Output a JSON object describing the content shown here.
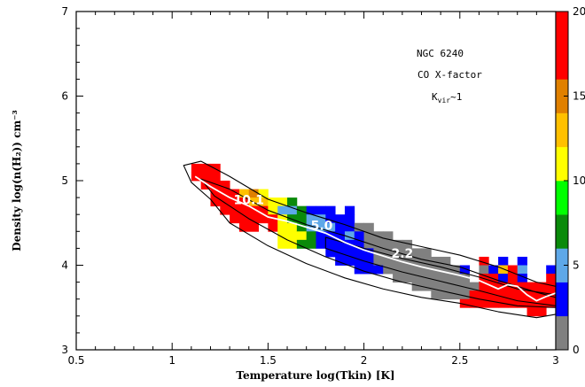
{
  "chart_data": {
    "type": "heatmap",
    "title": "",
    "xlabel": "Temperature log(Tkin) [K]",
    "ylabel": "Density log(n(H₂)) cm⁻³",
    "xlim": [
      0.5,
      3.0
    ],
    "ylim": [
      3.0,
      7.0
    ],
    "x_ticks": [
      "0.5",
      "1",
      "1.5",
      "2",
      "2.5",
      "3"
    ],
    "y_ticks": [
      "3",
      "4",
      "5",
      "6",
      "7"
    ],
    "grid": false,
    "annotations": [
      "NGC 6240",
      "CO X-factor",
      "Kvir~1"
    ],
    "contour_labels": [
      {
        "text": "10.1",
        "x": 1.4,
        "y": 4.72
      },
      {
        "text": "5.0",
        "x": 1.78,
        "y": 4.42
      },
      {
        "text": "2.2",
        "x": 2.2,
        "y": 4.09
      }
    ],
    "colorbar": {
      "range": [
        0,
        20
      ],
      "tick_labels": [
        "0",
        "5",
        "10",
        "15",
        "20"
      ],
      "colors": [
        "#808080",
        "#0000ff",
        "#5ea8e8",
        "#0a8a0a",
        "#00ff00",
        "#ffff00",
        "#ffc000",
        "#e08000",
        "#ff0000",
        "#ff0000"
      ]
    },
    "cell_size": {
      "dx": 0.05,
      "dy": 0.1
    },
    "cells": [
      {
        "x": 1.1,
        "y": 5.1,
        "v": 20
      },
      {
        "x": 1.1,
        "y": 5.0,
        "v": 20
      },
      {
        "x": 1.15,
        "y": 5.1,
        "v": 20
      },
      {
        "x": 1.15,
        "y": 5.0,
        "v": 20
      },
      {
        "x": 1.15,
        "y": 4.9,
        "v": 20
      },
      {
        "x": 1.2,
        "y": 5.1,
        "v": 20
      },
      {
        "x": 1.2,
        "y": 5.0,
        "v": 20
      },
      {
        "x": 1.2,
        "y": 4.9,
        "v": 20
      },
      {
        "x": 1.2,
        "y": 4.8,
        "v": 20
      },
      {
        "x": 1.2,
        "y": 4.7,
        "v": 20
      },
      {
        "x": 1.25,
        "y": 4.9,
        "v": 20
      },
      {
        "x": 1.25,
        "y": 4.8,
        "v": 20
      },
      {
        "x": 1.25,
        "y": 4.7,
        "v": 20
      },
      {
        "x": 1.25,
        "y": 4.6,
        "v": 20
      },
      {
        "x": 1.3,
        "y": 4.8,
        "v": 20
      },
      {
        "x": 1.3,
        "y": 4.7,
        "v": 20
      },
      {
        "x": 1.3,
        "y": 4.6,
        "v": 20
      },
      {
        "x": 1.3,
        "y": 4.5,
        "v": 20
      },
      {
        "x": 1.35,
        "y": 4.8,
        "v": 13
      },
      {
        "x": 1.35,
        "y": 4.7,
        "v": 20
      },
      {
        "x": 1.35,
        "y": 4.6,
        "v": 20
      },
      {
        "x": 1.35,
        "y": 4.5,
        "v": 20
      },
      {
        "x": 1.35,
        "y": 4.4,
        "v": 20
      },
      {
        "x": 1.4,
        "y": 4.8,
        "v": 15
      },
      {
        "x": 1.4,
        "y": 4.7,
        "v": 13
      },
      {
        "x": 1.4,
        "y": 4.6,
        "v": 20
      },
      {
        "x": 1.4,
        "y": 4.5,
        "v": 20
      },
      {
        "x": 1.4,
        "y": 4.4,
        "v": 20
      },
      {
        "x": 1.45,
        "y": 4.8,
        "v": 11
      },
      {
        "x": 1.45,
        "y": 4.7,
        "v": 13
      },
      {
        "x": 1.45,
        "y": 4.6,
        "v": 20
      },
      {
        "x": 1.45,
        "y": 4.5,
        "v": 20
      },
      {
        "x": 1.5,
        "y": 4.7,
        "v": 11
      },
      {
        "x": 1.5,
        "y": 4.6,
        "v": 11
      },
      {
        "x": 1.5,
        "y": 4.5,
        "v": 20
      },
      {
        "x": 1.5,
        "y": 4.4,
        "v": 20
      },
      {
        "x": 1.55,
        "y": 4.7,
        "v": 11
      },
      {
        "x": 1.55,
        "y": 4.6,
        "v": 5
      },
      {
        "x": 1.55,
        "y": 4.5,
        "v": 11
      },
      {
        "x": 1.55,
        "y": 4.4,
        "v": 11
      },
      {
        "x": 1.55,
        "y": 4.3,
        "v": 11
      },
      {
        "x": 1.55,
        "y": 4.2,
        "v": 11
      },
      {
        "x": 1.6,
        "y": 4.7,
        "v": 7
      },
      {
        "x": 1.6,
        "y": 4.6,
        "v": 5
      },
      {
        "x": 1.6,
        "y": 4.5,
        "v": 7
      },
      {
        "x": 1.6,
        "y": 4.4,
        "v": 11
      },
      {
        "x": 1.6,
        "y": 4.3,
        "v": 11
      },
      {
        "x": 1.6,
        "y": 4.2,
        "v": 11
      },
      {
        "x": 1.65,
        "y": 4.6,
        "v": 7
      },
      {
        "x": 1.65,
        "y": 4.5,
        "v": 7
      },
      {
        "x": 1.65,
        "y": 4.4,
        "v": 7
      },
      {
        "x": 1.65,
        "y": 4.3,
        "v": 11
      },
      {
        "x": 1.65,
        "y": 4.2,
        "v": 7
      },
      {
        "x": 1.7,
        "y": 4.6,
        "v": 3
      },
      {
        "x": 1.7,
        "y": 4.5,
        "v": 5
      },
      {
        "x": 1.7,
        "y": 4.4,
        "v": 5
      },
      {
        "x": 1.7,
        "y": 4.3,
        "v": 7
      },
      {
        "x": 1.7,
        "y": 4.2,
        "v": 7
      },
      {
        "x": 1.75,
        "y": 4.6,
        "v": 3
      },
      {
        "x": 1.75,
        "y": 4.5,
        "v": 5
      },
      {
        "x": 1.75,
        "y": 4.4,
        "v": 5
      },
      {
        "x": 1.75,
        "y": 4.3,
        "v": 3
      },
      {
        "x": 1.75,
        "y": 4.2,
        "v": 3
      },
      {
        "x": 1.8,
        "y": 4.6,
        "v": 3
      },
      {
        "x": 1.8,
        "y": 4.5,
        "v": 3
      },
      {
        "x": 1.8,
        "y": 4.4,
        "v": 5
      },
      {
        "x": 1.8,
        "y": 4.3,
        "v": 3
      },
      {
        "x": 1.8,
        "y": 4.2,
        "v": 3
      },
      {
        "x": 1.8,
        "y": 4.1,
        "v": 3
      },
      {
        "x": 1.85,
        "y": 4.5,
        "v": 3
      },
      {
        "x": 1.85,
        "y": 4.4,
        "v": 3
      },
      {
        "x": 1.85,
        "y": 4.3,
        "v": 3
      },
      {
        "x": 1.85,
        "y": 4.2,
        "v": 3
      },
      {
        "x": 1.85,
        "y": 4.1,
        "v": 3
      },
      {
        "x": 1.85,
        "y": 4.0,
        "v": 3
      },
      {
        "x": 1.9,
        "y": 4.6,
        "v": 3
      },
      {
        "x": 1.9,
        "y": 4.5,
        "v": 3
      },
      {
        "x": 1.9,
        "y": 4.4,
        "v": 3
      },
      {
        "x": 1.9,
        "y": 4.3,
        "v": 5
      },
      {
        "x": 1.9,
        "y": 4.2,
        "v": 3
      },
      {
        "x": 1.9,
        "y": 4.1,
        "v": 3
      },
      {
        "x": 1.9,
        "y": 4.0,
        "v": 3
      },
      {
        "x": 1.95,
        "y": 4.4,
        "v": 1.5
      },
      {
        "x": 1.95,
        "y": 4.3,
        "v": 3
      },
      {
        "x": 1.95,
        "y": 4.2,
        "v": 3
      },
      {
        "x": 1.95,
        "y": 4.1,
        "v": 3
      },
      {
        "x": 1.95,
        "y": 4.0,
        "v": 3
      },
      {
        "x": 1.95,
        "y": 3.9,
        "v": 3
      },
      {
        "x": 2.0,
        "y": 4.4,
        "v": 1.5
      },
      {
        "x": 2.0,
        "y": 4.3,
        "v": 1.5
      },
      {
        "x": 2.0,
        "y": 4.2,
        "v": 1.5
      },
      {
        "x": 2.0,
        "y": 4.1,
        "v": 3
      },
      {
        "x": 2.0,
        "y": 4.0,
        "v": 3
      },
      {
        "x": 2.0,
        "y": 3.9,
        "v": 3
      },
      {
        "x": 2.05,
        "y": 4.3,
        "v": 1.5
      },
      {
        "x": 2.05,
        "y": 4.2,
        "v": 1.5
      },
      {
        "x": 2.05,
        "y": 4.1,
        "v": 1.5
      },
      {
        "x": 2.05,
        "y": 4.0,
        "v": 1.5
      },
      {
        "x": 2.05,
        "y": 3.9,
        "v": 3
      },
      {
        "x": 2.1,
        "y": 4.3,
        "v": 1.5
      },
      {
        "x": 2.1,
        "y": 4.2,
        "v": 1.5
      },
      {
        "x": 2.1,
        "y": 4.1,
        "v": 1.5
      },
      {
        "x": 2.1,
        "y": 4.0,
        "v": 1.5
      },
      {
        "x": 2.1,
        "y": 3.9,
        "v": 1.5
      },
      {
        "x": 2.15,
        "y": 4.2,
        "v": 1.5
      },
      {
        "x": 2.15,
        "y": 4.1,
        "v": 1.5
      },
      {
        "x": 2.15,
        "y": 4.0,
        "v": 1.5
      },
      {
        "x": 2.15,
        "y": 3.9,
        "v": 1.5
      },
      {
        "x": 2.15,
        "y": 3.8,
        "v": 1.5
      },
      {
        "x": 2.2,
        "y": 4.2,
        "v": 1.5
      },
      {
        "x": 2.2,
        "y": 4.1,
        "v": 1.5
      },
      {
        "x": 2.2,
        "y": 4.0,
        "v": 1.5
      },
      {
        "x": 2.2,
        "y": 3.9,
        "v": 1.5
      },
      {
        "x": 2.2,
        "y": 3.8,
        "v": 1.5
      },
      {
        "x": 2.25,
        "y": 4.1,
        "v": 1.5
      },
      {
        "x": 2.25,
        "y": 4.0,
        "v": 1.5
      },
      {
        "x": 2.25,
        "y": 3.9,
        "v": 1.5
      },
      {
        "x": 2.25,
        "y": 3.8,
        "v": 1.5
      },
      {
        "x": 2.25,
        "y": 3.7,
        "v": 1.5
      },
      {
        "x": 2.3,
        "y": 4.1,
        "v": 1.5
      },
      {
        "x": 2.3,
        "y": 4.0,
        "v": 1.5
      },
      {
        "x": 2.3,
        "y": 3.9,
        "v": 1.5
      },
      {
        "x": 2.3,
        "y": 3.8,
        "v": 1.5
      },
      {
        "x": 2.3,
        "y": 3.7,
        "v": 1.5
      },
      {
        "x": 2.35,
        "y": 4.0,
        "v": 1.5
      },
      {
        "x": 2.35,
        "y": 3.9,
        "v": 1.5
      },
      {
        "x": 2.35,
        "y": 3.8,
        "v": 1.5
      },
      {
        "x": 2.35,
        "y": 3.7,
        "v": 1.5
      },
      {
        "x": 2.35,
        "y": 3.6,
        "v": 1.5
      },
      {
        "x": 2.4,
        "y": 4.0,
        "v": 1.5
      },
      {
        "x": 2.4,
        "y": 3.9,
        "v": 1.5
      },
      {
        "x": 2.4,
        "y": 3.8,
        "v": 1.5
      },
      {
        "x": 2.4,
        "y": 3.7,
        "v": 1.5
      },
      {
        "x": 2.4,
        "y": 3.6,
        "v": 1.5
      },
      {
        "x": 2.45,
        "y": 3.9,
        "v": 1.5
      },
      {
        "x": 2.45,
        "y": 3.8,
        "v": 1.5
      },
      {
        "x": 2.45,
        "y": 3.7,
        "v": 1.5
      },
      {
        "x": 2.45,
        "y": 3.6,
        "v": 1.5
      },
      {
        "x": 2.5,
        "y": 3.9,
        "v": 3
      },
      {
        "x": 2.5,
        "y": 3.8,
        "v": 1.5
      },
      {
        "x": 2.5,
        "y": 3.7,
        "v": 1.5
      },
      {
        "x": 2.5,
        "y": 3.6,
        "v": 1.5
      },
      {
        "x": 2.5,
        "y": 3.5,
        "v": 20
      },
      {
        "x": 2.55,
        "y": 3.7,
        "v": 1.5
      },
      {
        "x": 2.55,
        "y": 3.6,
        "v": 20
      },
      {
        "x": 2.55,
        "y": 3.5,
        "v": 20
      },
      {
        "x": 2.6,
        "y": 4.0,
        "v": 20
      },
      {
        "x": 2.6,
        "y": 3.9,
        "v": 1.5
      },
      {
        "x": 2.6,
        "y": 3.8,
        "v": 20
      },
      {
        "x": 2.6,
        "y": 3.7,
        "v": 20
      },
      {
        "x": 2.6,
        "y": 3.6,
        "v": 20
      },
      {
        "x": 2.6,
        "y": 3.5,
        "v": 20
      },
      {
        "x": 2.65,
        "y": 3.9,
        "v": 3
      },
      {
        "x": 2.65,
        "y": 3.8,
        "v": 20
      },
      {
        "x": 2.65,
        "y": 3.7,
        "v": 20
      },
      {
        "x": 2.65,
        "y": 3.6,
        "v": 20
      },
      {
        "x": 2.65,
        "y": 3.5,
        "v": 20
      },
      {
        "x": 2.7,
        "y": 4.0,
        "v": 3
      },
      {
        "x": 2.7,
        "y": 3.9,
        "v": 13
      },
      {
        "x": 2.7,
        "y": 3.8,
        "v": 3
      },
      {
        "x": 2.7,
        "y": 3.7,
        "v": 20
      },
      {
        "x": 2.7,
        "y": 3.6,
        "v": 20
      },
      {
        "x": 2.7,
        "y": 3.5,
        "v": 20
      },
      {
        "x": 2.75,
        "y": 3.9,
        "v": 20
      },
      {
        "x": 2.75,
        "y": 3.8,
        "v": 20
      },
      {
        "x": 2.75,
        "y": 3.7,
        "v": 20
      },
      {
        "x": 2.75,
        "y": 3.6,
        "v": 20
      },
      {
        "x": 2.75,
        "y": 3.5,
        "v": 20
      },
      {
        "x": 2.8,
        "y": 4.0,
        "v": 3
      },
      {
        "x": 2.8,
        "y": 3.9,
        "v": 5
      },
      {
        "x": 2.8,
        "y": 3.8,
        "v": 3
      },
      {
        "x": 2.8,
        "y": 3.7,
        "v": 20
      },
      {
        "x": 2.8,
        "y": 3.6,
        "v": 20
      },
      {
        "x": 2.8,
        "y": 3.5,
        "v": 20
      },
      {
        "x": 2.85,
        "y": 3.7,
        "v": 20
      },
      {
        "x": 2.85,
        "y": 3.6,
        "v": 20
      },
      {
        "x": 2.85,
        "y": 3.5,
        "v": 20
      },
      {
        "x": 2.85,
        "y": 3.4,
        "v": 20
      },
      {
        "x": 2.9,
        "y": 3.7,
        "v": 20
      },
      {
        "x": 2.9,
        "y": 3.6,
        "v": 20
      },
      {
        "x": 2.9,
        "y": 3.5,
        "v": 20
      },
      {
        "x": 2.9,
        "y": 3.4,
        "v": 20
      },
      {
        "x": 2.95,
        "y": 3.9,
        "v": 3
      },
      {
        "x": 2.95,
        "y": 3.8,
        "v": 20
      },
      {
        "x": 2.95,
        "y": 3.7,
        "v": 20
      },
      {
        "x": 2.95,
        "y": 3.6,
        "v": 20
      },
      {
        "x": 2.95,
        "y": 3.5,
        "v": 20
      }
    ],
    "median_line": {
      "x": [
        1.12,
        1.2,
        1.3,
        1.4,
        1.5,
        1.6,
        1.7,
        1.8,
        1.9,
        2.0,
        2.1,
        2.2,
        2.3,
        2.4,
        2.5,
        2.6,
        2.7,
        2.75,
        2.8,
        2.85,
        2.9,
        2.95,
        3.0
      ],
      "y": [
        5.05,
        4.93,
        4.8,
        4.7,
        4.57,
        4.52,
        4.45,
        4.38,
        4.27,
        4.18,
        4.11,
        4.04,
        3.98,
        3.93,
        3.88,
        3.82,
        3.72,
        3.77,
        3.75,
        3.65,
        3.58,
        3.63,
        3.67
      ]
    },
    "contours": [
      {
        "x": [
          1.06,
          1.15,
          1.3,
          1.5,
          1.7,
          1.9,
          2.1,
          2.3,
          2.5,
          2.7,
          2.9,
          3.0,
          3.0,
          2.9,
          2.7,
          2.5,
          2.3,
          2.1,
          1.9,
          1.7,
          1.5,
          1.3,
          1.2,
          1.1,
          1.06
        ],
        "y": [
          5.18,
          5.23,
          5.05,
          4.78,
          4.62,
          4.48,
          4.32,
          4.22,
          4.12,
          3.98,
          3.8,
          3.75,
          3.42,
          3.38,
          3.45,
          3.55,
          3.62,
          3.72,
          3.85,
          4.02,
          4.23,
          4.5,
          4.78,
          4.98,
          5.18
        ]
      },
      {
        "x": [
          1.15,
          1.3,
          1.5,
          1.7,
          1.9,
          2.1,
          2.3,
          2.5,
          2.7,
          2.9,
          3.0,
          3.0,
          2.8,
          2.6,
          2.4,
          2.2,
          2.0,
          1.8,
          1.6,
          1.4,
          1.22,
          1.15
        ],
        "y": [
          5.02,
          4.9,
          4.65,
          4.48,
          4.35,
          4.2,
          4.07,
          3.98,
          3.82,
          3.68,
          3.62,
          3.5,
          3.52,
          3.6,
          3.7,
          3.8,
          3.93,
          4.1,
          4.3,
          4.55,
          4.82,
          5.02
        ]
      },
      {
        "x": [
          1.8,
          2.0,
          2.2,
          2.4,
          2.6,
          2.8,
          3.0,
          3.0,
          2.8,
          2.6,
          2.4,
          2.2,
          2.0,
          1.8
        ],
        "y": [
          4.33,
          4.2,
          4.08,
          3.98,
          3.86,
          3.72,
          3.65,
          3.52,
          3.58,
          3.7,
          3.81,
          3.92,
          4.05,
          4.2
        ]
      }
    ]
  }
}
